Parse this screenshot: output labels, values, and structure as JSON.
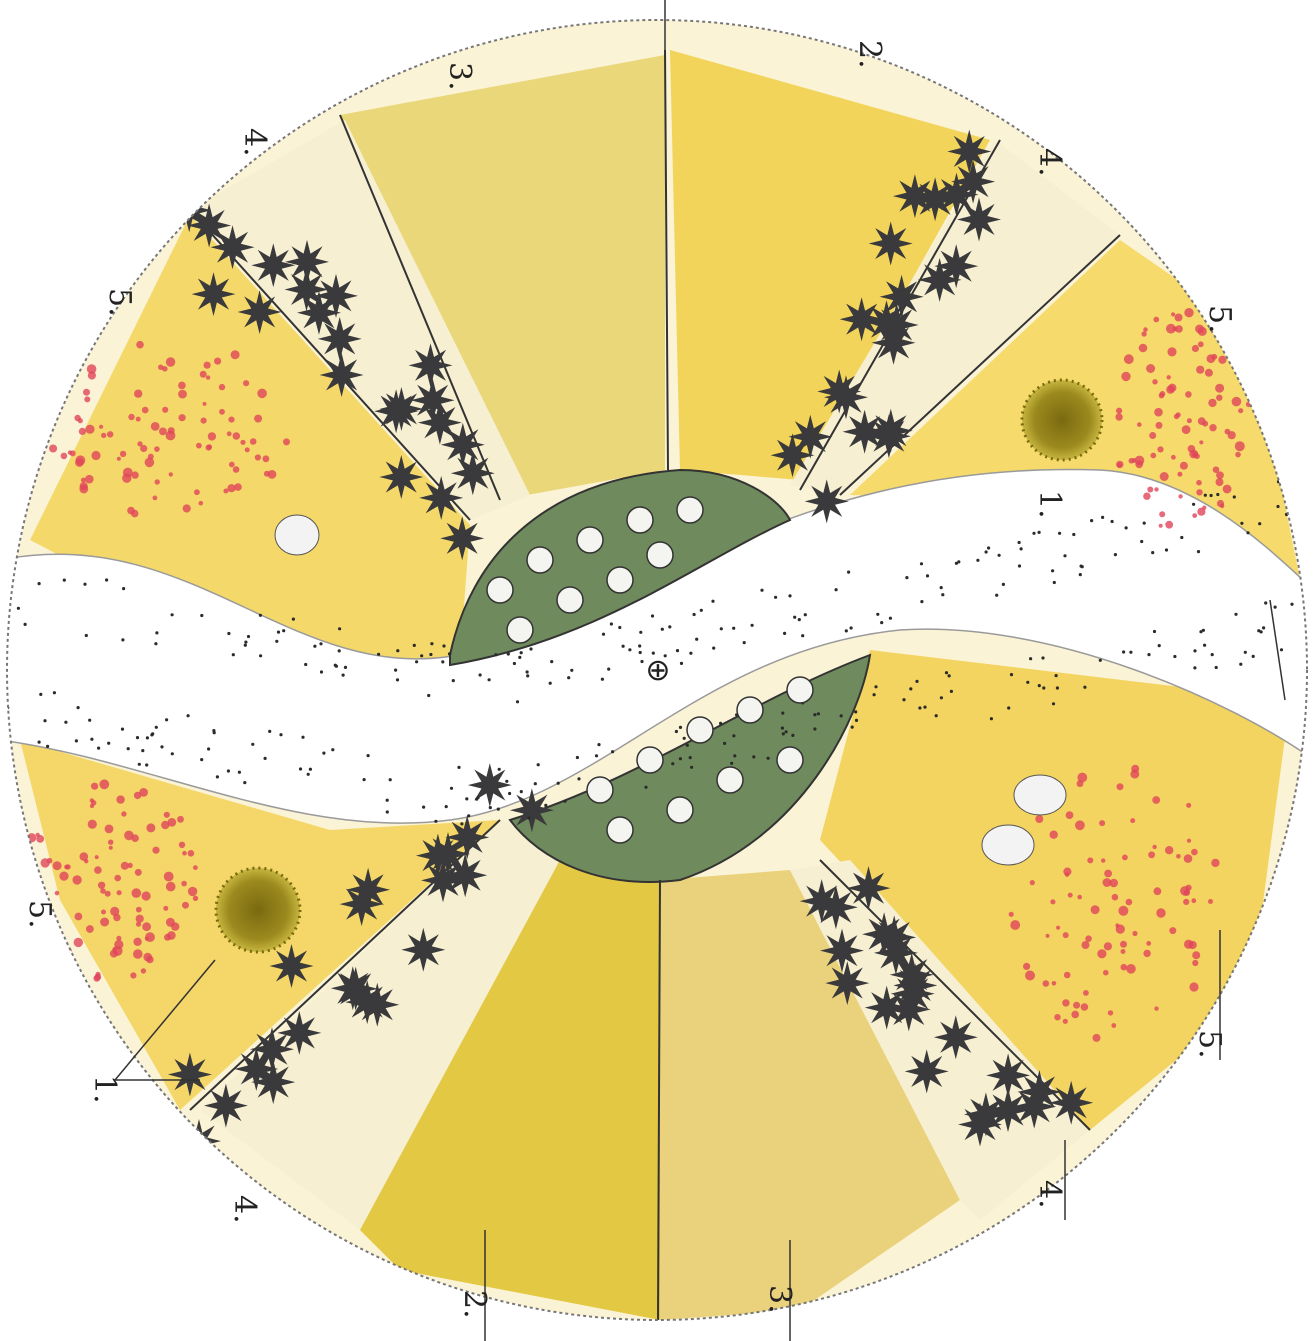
{
  "diagram": {
    "center_mark": "⊕",
    "labels": [
      {
        "id": "top-3",
        "text": "3."
      },
      {
        "id": "top-2",
        "text": "2."
      },
      {
        "id": "upper-left-4",
        "text": "4."
      },
      {
        "id": "upper-right-4",
        "text": "4."
      },
      {
        "id": "left-5",
        "text": "5."
      },
      {
        "id": "right-5",
        "text": "5."
      },
      {
        "id": "path-1",
        "text": "1."
      },
      {
        "id": "lower-left-5",
        "text": "5."
      },
      {
        "id": "lower-right-5",
        "text": "5."
      },
      {
        "id": "bottom-left-1",
        "text": "1."
      },
      {
        "id": "bottom-left-4",
        "text": "4."
      },
      {
        "id": "bottom-2",
        "text": "2."
      },
      {
        "id": "bottom-3",
        "text": "3."
      },
      {
        "id": "bottom-right-4",
        "text": "4."
      }
    ]
  },
  "colors": {
    "yellow": "#f2cf4a",
    "mustard": "#c9b43c",
    "dark_shrub": "#3a3a3c",
    "green_bed": "#6f8a5c",
    "red_dots": "#e0455a",
    "gravel": "#2b2b2b",
    "accent_shrub": "#8a7a1e"
  }
}
